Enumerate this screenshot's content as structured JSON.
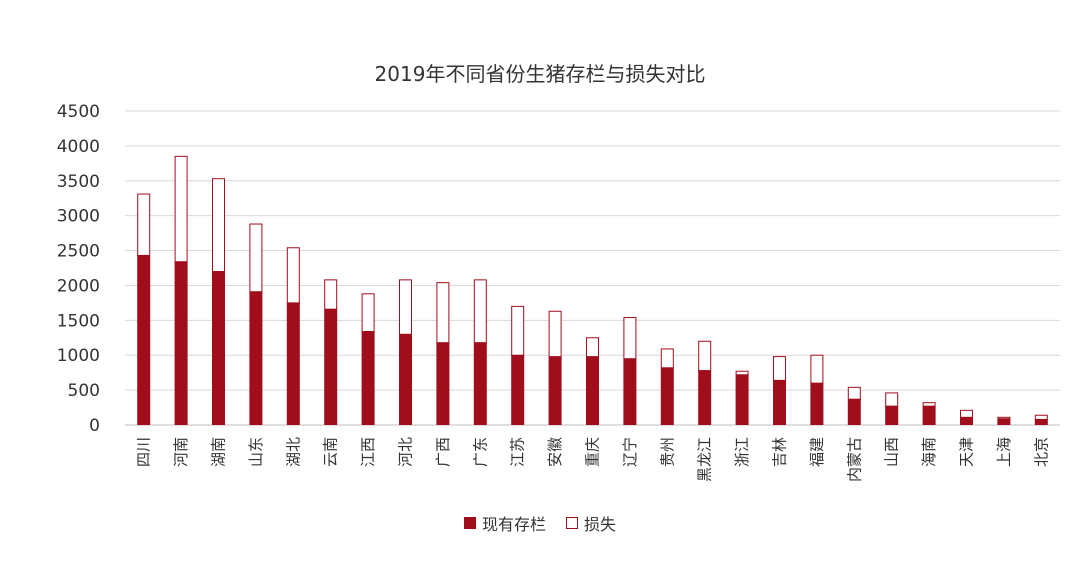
{
  "colors": {
    "existing": "#a00d1b",
    "loss_border": "#a00d1b",
    "grid": "#d9d9d9",
    "axis": "#bfbfbf",
    "text": "#333333"
  },
  "chart_data": {
    "type": "bar",
    "stacked": true,
    "title": "2019年不同省份生猪存栏与损失对比",
    "xlabel": "",
    "ylabel": "",
    "ylim": [
      0,
      4500
    ],
    "yticks": [
      0,
      500,
      1000,
      1500,
      2000,
      2500,
      3000,
      3500,
      4000,
      4500
    ],
    "grid": true,
    "legend_position": "bottom",
    "categories": [
      "四川",
      "河南",
      "湖南",
      "山东",
      "湖北",
      "云南",
      "江西",
      "河北",
      "广西",
      "广东",
      "江苏",
      "安徽",
      "重庆",
      "辽宁",
      "贵州",
      "黑龙江",
      "浙江",
      "吉林",
      "福建",
      "内蒙古",
      "山西",
      "海南",
      "天津",
      "上海",
      "北京"
    ],
    "series": [
      {
        "name": "现有存栏",
        "style": "filled",
        "values": [
          2430,
          2340,
          2200,
          1910,
          1750,
          1660,
          1340,
          1300,
          1180,
          1180,
          1000,
          980,
          980,
          950,
          820,
          780,
          720,
          640,
          600,
          370,
          270,
          270,
          110,
          90,
          80
        ]
      },
      {
        "name": "损失",
        "style": "outline",
        "values": [
          880,
          1510,
          1330,
          970,
          790,
          420,
          540,
          780,
          860,
          900,
          700,
          650,
          270,
          590,
          270,
          420,
          50,
          340,
          400,
          170,
          190,
          50,
          100,
          20,
          60
        ]
      }
    ]
  }
}
